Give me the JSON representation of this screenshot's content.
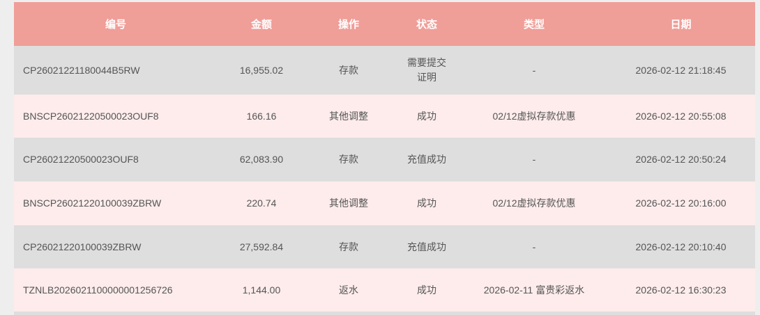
{
  "headers": [
    "编号",
    "金额",
    "操作",
    "状态",
    "类型",
    "日期"
  ],
  "rows": [
    {
      "id": "CP26021221180044B5RW",
      "amount": "16,955.02",
      "action": "存款",
      "status": "需要提交证明",
      "type": "-",
      "date": "2026-02-12 21:18:45"
    },
    {
      "id": "BNSCP26021220500023OUF8",
      "amount": "166.16",
      "action": "其他调整",
      "status": "成功",
      "type": "02/12虚拟存款优惠",
      "date": "2026-02-12 20:55:08"
    },
    {
      "id": "CP26021220500023OUF8",
      "amount": "62,083.90",
      "action": "存款",
      "status": "充值成功",
      "type": "-",
      "date": "2026-02-12 20:50:24"
    },
    {
      "id": "BNSCP26021220100039ZBRW",
      "amount": "220.74",
      "action": "其他调整",
      "status": "成功",
      "type": "02/12虚拟存款优惠",
      "date": "2026-02-12 20:16:00"
    },
    {
      "id": "CP26021220100039ZBRW",
      "amount": "27,592.84",
      "action": "存款",
      "status": "充值成功",
      "type": "-",
      "date": "2026-02-12 20:10:40"
    },
    {
      "id": "TZNLB2026021100000001256726",
      "amount": "1,144.00",
      "action": "返水",
      "status": "成功",
      "type": "2026-02-11 富贵彩返水",
      "date": "2026-02-12 16:30:23"
    }
  ]
}
